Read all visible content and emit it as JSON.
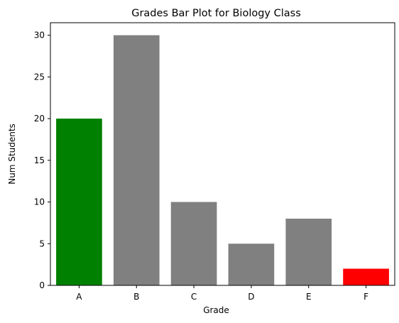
{
  "chart_data": {
    "type": "bar",
    "title": "Grades Bar Plot for Biology Class",
    "xlabel": "Grade",
    "ylabel": "Num Students",
    "categories": [
      "A",
      "B",
      "C",
      "D",
      "E",
      "F"
    ],
    "values": [
      20,
      30,
      10,
      5,
      8,
      2
    ],
    "colors": [
      "#008000",
      "#808080",
      "#808080",
      "#808080",
      "#808080",
      "#ff0000"
    ],
    "ylim": [
      0,
      31.5
    ],
    "yticks": [
      0,
      5,
      10,
      15,
      20,
      25,
      30
    ],
    "grid": false,
    "legend": "none"
  }
}
